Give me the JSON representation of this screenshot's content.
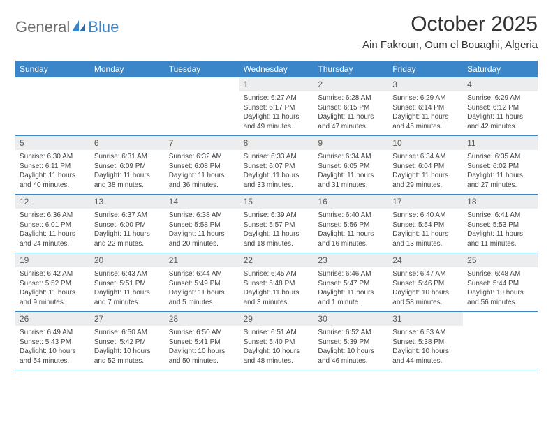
{
  "logo": {
    "text1": "General",
    "text2": "Blue"
  },
  "header": {
    "month_title": "October 2025",
    "location": "Ain Fakroun, Oum el Bouaghi, Algeria"
  },
  "colors": {
    "header_bar": "#3a86c8",
    "daynum_bg": "#ecedee",
    "border": "#3a86c8",
    "text": "#333333",
    "logo_gray": "#6b6b6b",
    "logo_blue": "#3a86c8"
  },
  "weekdays": [
    "Sunday",
    "Monday",
    "Tuesday",
    "Wednesday",
    "Thursday",
    "Friday",
    "Saturday"
  ],
  "weeks": [
    [
      {
        "n": "",
        "sunrise": "",
        "sunset": "",
        "daylight": ""
      },
      {
        "n": "",
        "sunrise": "",
        "sunset": "",
        "daylight": ""
      },
      {
        "n": "",
        "sunrise": "",
        "sunset": "",
        "daylight": ""
      },
      {
        "n": "1",
        "sunrise": "Sunrise: 6:27 AM",
        "sunset": "Sunset: 6:17 PM",
        "daylight": "Daylight: 11 hours and 49 minutes."
      },
      {
        "n": "2",
        "sunrise": "Sunrise: 6:28 AM",
        "sunset": "Sunset: 6:15 PM",
        "daylight": "Daylight: 11 hours and 47 minutes."
      },
      {
        "n": "3",
        "sunrise": "Sunrise: 6:29 AM",
        "sunset": "Sunset: 6:14 PM",
        "daylight": "Daylight: 11 hours and 45 minutes."
      },
      {
        "n": "4",
        "sunrise": "Sunrise: 6:29 AM",
        "sunset": "Sunset: 6:12 PM",
        "daylight": "Daylight: 11 hours and 42 minutes."
      }
    ],
    [
      {
        "n": "5",
        "sunrise": "Sunrise: 6:30 AM",
        "sunset": "Sunset: 6:11 PM",
        "daylight": "Daylight: 11 hours and 40 minutes."
      },
      {
        "n": "6",
        "sunrise": "Sunrise: 6:31 AM",
        "sunset": "Sunset: 6:09 PM",
        "daylight": "Daylight: 11 hours and 38 minutes."
      },
      {
        "n": "7",
        "sunrise": "Sunrise: 6:32 AM",
        "sunset": "Sunset: 6:08 PM",
        "daylight": "Daylight: 11 hours and 36 minutes."
      },
      {
        "n": "8",
        "sunrise": "Sunrise: 6:33 AM",
        "sunset": "Sunset: 6:07 PM",
        "daylight": "Daylight: 11 hours and 33 minutes."
      },
      {
        "n": "9",
        "sunrise": "Sunrise: 6:34 AM",
        "sunset": "Sunset: 6:05 PM",
        "daylight": "Daylight: 11 hours and 31 minutes."
      },
      {
        "n": "10",
        "sunrise": "Sunrise: 6:34 AM",
        "sunset": "Sunset: 6:04 PM",
        "daylight": "Daylight: 11 hours and 29 minutes."
      },
      {
        "n": "11",
        "sunrise": "Sunrise: 6:35 AM",
        "sunset": "Sunset: 6:02 PM",
        "daylight": "Daylight: 11 hours and 27 minutes."
      }
    ],
    [
      {
        "n": "12",
        "sunrise": "Sunrise: 6:36 AM",
        "sunset": "Sunset: 6:01 PM",
        "daylight": "Daylight: 11 hours and 24 minutes."
      },
      {
        "n": "13",
        "sunrise": "Sunrise: 6:37 AM",
        "sunset": "Sunset: 6:00 PM",
        "daylight": "Daylight: 11 hours and 22 minutes."
      },
      {
        "n": "14",
        "sunrise": "Sunrise: 6:38 AM",
        "sunset": "Sunset: 5:58 PM",
        "daylight": "Daylight: 11 hours and 20 minutes."
      },
      {
        "n": "15",
        "sunrise": "Sunrise: 6:39 AM",
        "sunset": "Sunset: 5:57 PM",
        "daylight": "Daylight: 11 hours and 18 minutes."
      },
      {
        "n": "16",
        "sunrise": "Sunrise: 6:40 AM",
        "sunset": "Sunset: 5:56 PM",
        "daylight": "Daylight: 11 hours and 16 minutes."
      },
      {
        "n": "17",
        "sunrise": "Sunrise: 6:40 AM",
        "sunset": "Sunset: 5:54 PM",
        "daylight": "Daylight: 11 hours and 13 minutes."
      },
      {
        "n": "18",
        "sunrise": "Sunrise: 6:41 AM",
        "sunset": "Sunset: 5:53 PM",
        "daylight": "Daylight: 11 hours and 11 minutes."
      }
    ],
    [
      {
        "n": "19",
        "sunrise": "Sunrise: 6:42 AM",
        "sunset": "Sunset: 5:52 PM",
        "daylight": "Daylight: 11 hours and 9 minutes."
      },
      {
        "n": "20",
        "sunrise": "Sunrise: 6:43 AM",
        "sunset": "Sunset: 5:51 PM",
        "daylight": "Daylight: 11 hours and 7 minutes."
      },
      {
        "n": "21",
        "sunrise": "Sunrise: 6:44 AM",
        "sunset": "Sunset: 5:49 PM",
        "daylight": "Daylight: 11 hours and 5 minutes."
      },
      {
        "n": "22",
        "sunrise": "Sunrise: 6:45 AM",
        "sunset": "Sunset: 5:48 PM",
        "daylight": "Daylight: 11 hours and 3 minutes."
      },
      {
        "n": "23",
        "sunrise": "Sunrise: 6:46 AM",
        "sunset": "Sunset: 5:47 PM",
        "daylight": "Daylight: 11 hours and 1 minute."
      },
      {
        "n": "24",
        "sunrise": "Sunrise: 6:47 AM",
        "sunset": "Sunset: 5:46 PM",
        "daylight": "Daylight: 10 hours and 58 minutes."
      },
      {
        "n": "25",
        "sunrise": "Sunrise: 6:48 AM",
        "sunset": "Sunset: 5:44 PM",
        "daylight": "Daylight: 10 hours and 56 minutes."
      }
    ],
    [
      {
        "n": "26",
        "sunrise": "Sunrise: 6:49 AM",
        "sunset": "Sunset: 5:43 PM",
        "daylight": "Daylight: 10 hours and 54 minutes."
      },
      {
        "n": "27",
        "sunrise": "Sunrise: 6:50 AM",
        "sunset": "Sunset: 5:42 PM",
        "daylight": "Daylight: 10 hours and 52 minutes."
      },
      {
        "n": "28",
        "sunrise": "Sunrise: 6:50 AM",
        "sunset": "Sunset: 5:41 PM",
        "daylight": "Daylight: 10 hours and 50 minutes."
      },
      {
        "n": "29",
        "sunrise": "Sunrise: 6:51 AM",
        "sunset": "Sunset: 5:40 PM",
        "daylight": "Daylight: 10 hours and 48 minutes."
      },
      {
        "n": "30",
        "sunrise": "Sunrise: 6:52 AM",
        "sunset": "Sunset: 5:39 PM",
        "daylight": "Daylight: 10 hours and 46 minutes."
      },
      {
        "n": "31",
        "sunrise": "Sunrise: 6:53 AM",
        "sunset": "Sunset: 5:38 PM",
        "daylight": "Daylight: 10 hours and 44 minutes."
      },
      {
        "n": "",
        "sunrise": "",
        "sunset": "",
        "daylight": ""
      }
    ]
  ]
}
